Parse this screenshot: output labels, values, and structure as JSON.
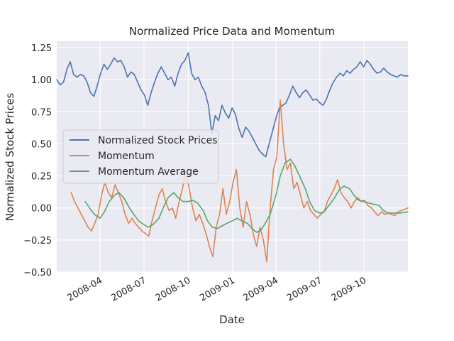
{
  "chart_data": {
    "type": "line",
    "title": "Normalized Price Data and Momentum",
    "xlabel": "Date",
    "ylabel": "Normalized Stock Prices",
    "xlim": [
      "2008-01-02",
      "2009-12-31"
    ],
    "ylim": [
      -0.5,
      1.3
    ],
    "x_ticks": [
      "2008-04",
      "2008-07",
      "2008-10",
      "2009-01",
      "2009-04",
      "2009-07",
      "2009-10"
    ],
    "y_ticks": [
      "1.25",
      "1.00",
      "0.75",
      "0.50",
      "0.25",
      "0.00",
      "−0.25",
      "−0.50"
    ],
    "grid": true,
    "legend_position": "center-left",
    "series": [
      {
        "name": "Normalized Stock Prices",
        "color": "#4c72b0",
        "points": [
          [
            "2008-01-02",
            1.0
          ],
          [
            "2008-01-09",
            0.96
          ],
          [
            "2008-01-16",
            0.98
          ],
          [
            "2008-01-23",
            1.08
          ],
          [
            "2008-01-30",
            1.14
          ],
          [
            "2008-02-06",
            1.04
          ],
          [
            "2008-02-13",
            1.02
          ],
          [
            "2008-02-20",
            1.04
          ],
          [
            "2008-02-27",
            1.03
          ],
          [
            "2008-03-05",
            0.98
          ],
          [
            "2008-03-12",
            0.9
          ],
          [
            "2008-03-19",
            0.87
          ],
          [
            "2008-03-26",
            0.95
          ],
          [
            "2008-04-02",
            1.05
          ],
          [
            "2008-04-09",
            1.12
          ],
          [
            "2008-04-16",
            1.08
          ],
          [
            "2008-04-23",
            1.12
          ],
          [
            "2008-04-30",
            1.17
          ],
          [
            "2008-05-07",
            1.14
          ],
          [
            "2008-05-14",
            1.15
          ],
          [
            "2008-05-21",
            1.1
          ],
          [
            "2008-05-28",
            1.02
          ],
          [
            "2008-06-04",
            1.06
          ],
          [
            "2008-06-11",
            1.04
          ],
          [
            "2008-06-18",
            0.98
          ],
          [
            "2008-06-25",
            0.92
          ],
          [
            "2008-07-02",
            0.88
          ],
          [
            "2008-07-09",
            0.8
          ],
          [
            "2008-07-16",
            0.9
          ],
          [
            "2008-07-23",
            0.98
          ],
          [
            "2008-07-30",
            1.05
          ],
          [
            "2008-08-06",
            1.1
          ],
          [
            "2008-08-13",
            1.05
          ],
          [
            "2008-08-20",
            1.0
          ],
          [
            "2008-08-27",
            1.02
          ],
          [
            "2008-09-03",
            0.95
          ],
          [
            "2008-09-10",
            1.05
          ],
          [
            "2008-09-17",
            1.12
          ],
          [
            "2008-09-24",
            1.15
          ],
          [
            "2008-10-01",
            1.21
          ],
          [
            "2008-10-08",
            1.05
          ],
          [
            "2008-10-15",
            1.0
          ],
          [
            "2008-10-22",
            1.02
          ],
          [
            "2008-10-29",
            0.95
          ],
          [
            "2008-11-05",
            0.9
          ],
          [
            "2008-11-12",
            0.8
          ],
          [
            "2008-11-19",
            0.58
          ],
          [
            "2008-11-26",
            0.72
          ],
          [
            "2008-12-03",
            0.68
          ],
          [
            "2008-12-10",
            0.8
          ],
          [
            "2008-12-17",
            0.74
          ],
          [
            "2008-12-24",
            0.7
          ],
          [
            "2008-12-31",
            0.78
          ],
          [
            "2009-01-07",
            0.73
          ],
          [
            "2009-01-14",
            0.62
          ],
          [
            "2009-01-21",
            0.55
          ],
          [
            "2009-01-28",
            0.63
          ],
          [
            "2009-02-04",
            0.6
          ],
          [
            "2009-02-11",
            0.55
          ],
          [
            "2009-02-18",
            0.5
          ],
          [
            "2009-02-25",
            0.45
          ],
          [
            "2009-03-04",
            0.42
          ],
          [
            "2009-03-11",
            0.4
          ],
          [
            "2009-03-18",
            0.5
          ],
          [
            "2009-03-25",
            0.6
          ],
          [
            "2009-04-01",
            0.7
          ],
          [
            "2009-04-08",
            0.78
          ],
          [
            "2009-04-15",
            0.8
          ],
          [
            "2009-04-22",
            0.82
          ],
          [
            "2009-04-29",
            0.88
          ],
          [
            "2009-05-06",
            0.95
          ],
          [
            "2009-05-13",
            0.9
          ],
          [
            "2009-05-20",
            0.86
          ],
          [
            "2009-05-27",
            0.9
          ],
          [
            "2009-06-03",
            0.92
          ],
          [
            "2009-06-10",
            0.88
          ],
          [
            "2009-06-17",
            0.84
          ],
          [
            "2009-06-24",
            0.85
          ],
          [
            "2009-07-01",
            0.82
          ],
          [
            "2009-07-08",
            0.8
          ],
          [
            "2009-07-15",
            0.85
          ],
          [
            "2009-07-22",
            0.92
          ],
          [
            "2009-07-29",
            0.98
          ],
          [
            "2009-08-05",
            1.02
          ],
          [
            "2009-08-12",
            1.05
          ],
          [
            "2009-08-19",
            1.03
          ],
          [
            "2009-08-26",
            1.07
          ],
          [
            "2009-09-02",
            1.05
          ],
          [
            "2009-09-09",
            1.08
          ],
          [
            "2009-09-16",
            1.1
          ],
          [
            "2009-09-23",
            1.14
          ],
          [
            "2009-09-30",
            1.1
          ],
          [
            "2009-10-07",
            1.15
          ],
          [
            "2009-10-14",
            1.12
          ],
          [
            "2009-10-21",
            1.08
          ],
          [
            "2009-10-28",
            1.05
          ],
          [
            "2009-11-04",
            1.06
          ],
          [
            "2009-11-11",
            1.09
          ],
          [
            "2009-11-18",
            1.06
          ],
          [
            "2009-11-25",
            1.04
          ],
          [
            "2009-12-02",
            1.03
          ],
          [
            "2009-12-09",
            1.02
          ],
          [
            "2009-12-16",
            1.04
          ],
          [
            "2009-12-23",
            1.03
          ],
          [
            "2009-12-31",
            1.03
          ]
        ]
      },
      {
        "name": "Momentum",
        "color": "#dd8452",
        "points": [
          [
            "2008-02-01",
            0.12
          ],
          [
            "2008-02-08",
            0.05
          ],
          [
            "2008-02-15",
            0.0
          ],
          [
            "2008-02-22",
            -0.05
          ],
          [
            "2008-02-29",
            -0.1
          ],
          [
            "2008-03-07",
            -0.15
          ],
          [
            "2008-03-14",
            -0.18
          ],
          [
            "2008-03-21",
            -0.12
          ],
          [
            "2008-03-28",
            -0.05
          ],
          [
            "2008-04-04",
            0.1
          ],
          [
            "2008-04-11",
            0.2
          ],
          [
            "2008-04-18",
            0.12
          ],
          [
            "2008-04-25",
            0.08
          ],
          [
            "2008-05-02",
            0.18
          ],
          [
            "2008-05-09",
            0.12
          ],
          [
            "2008-05-16",
            0.05
          ],
          [
            "2008-05-23",
            -0.05
          ],
          [
            "2008-05-30",
            -0.12
          ],
          [
            "2008-06-06",
            -0.08
          ],
          [
            "2008-06-13",
            -0.12
          ],
          [
            "2008-06-20",
            -0.15
          ],
          [
            "2008-06-27",
            -0.18
          ],
          [
            "2008-07-04",
            -0.2
          ],
          [
            "2008-07-11",
            -0.22
          ],
          [
            "2008-07-18",
            -0.1
          ],
          [
            "2008-07-25",
            0.0
          ],
          [
            "2008-08-01",
            0.1
          ],
          [
            "2008-08-08",
            0.15
          ],
          [
            "2008-08-15",
            0.05
          ],
          [
            "2008-08-22",
            -0.02
          ],
          [
            "2008-08-29",
            0.0
          ],
          [
            "2008-09-05",
            -0.08
          ],
          [
            "2008-09-12",
            0.05
          ],
          [
            "2008-09-19",
            0.15
          ],
          [
            "2008-09-26",
            0.28
          ],
          [
            "2008-10-03",
            0.15
          ],
          [
            "2008-10-10",
            0.0
          ],
          [
            "2008-10-17",
            -0.1
          ],
          [
            "2008-10-24",
            -0.05
          ],
          [
            "2008-10-31",
            -0.12
          ],
          [
            "2008-11-07",
            -0.2
          ],
          [
            "2008-11-14",
            -0.3
          ],
          [
            "2008-11-21",
            -0.38
          ],
          [
            "2008-11-28",
            -0.15
          ],
          [
            "2008-12-05",
            -0.05
          ],
          [
            "2008-12-12",
            0.15
          ],
          [
            "2008-12-19",
            -0.05
          ],
          [
            "2008-12-26",
            0.05
          ],
          [
            "2009-01-02",
            0.2
          ],
          [
            "2009-01-09",
            0.3
          ],
          [
            "2009-01-16",
            0.0
          ],
          [
            "2009-01-23",
            -0.15
          ],
          [
            "2009-01-30",
            0.05
          ],
          [
            "2009-02-06",
            -0.05
          ],
          [
            "2009-02-13",
            -0.2
          ],
          [
            "2009-02-20",
            -0.3
          ],
          [
            "2009-02-27",
            -0.15
          ],
          [
            "2009-03-06",
            -0.25
          ],
          [
            "2009-03-13",
            -0.42
          ],
          [
            "2009-03-20",
            0.0
          ],
          [
            "2009-03-27",
            0.3
          ],
          [
            "2009-04-03",
            0.4
          ],
          [
            "2009-04-10",
            0.84
          ],
          [
            "2009-04-17",
            0.5
          ],
          [
            "2009-04-24",
            0.3
          ],
          [
            "2009-05-01",
            0.35
          ],
          [
            "2009-05-08",
            0.15
          ],
          [
            "2009-05-15",
            0.2
          ],
          [
            "2009-05-22",
            0.1
          ],
          [
            "2009-05-29",
            0.0
          ],
          [
            "2009-06-05",
            0.05
          ],
          [
            "2009-06-12",
            -0.02
          ],
          [
            "2009-06-19",
            -0.05
          ],
          [
            "2009-06-26",
            -0.08
          ],
          [
            "2009-07-03",
            -0.05
          ],
          [
            "2009-07-10",
            -0.03
          ],
          [
            "2009-07-17",
            0.05
          ],
          [
            "2009-07-24",
            0.1
          ],
          [
            "2009-07-31",
            0.15
          ],
          [
            "2009-08-07",
            0.22
          ],
          [
            "2009-08-14",
            0.12
          ],
          [
            "2009-08-21",
            0.08
          ],
          [
            "2009-08-28",
            0.05
          ],
          [
            "2009-09-04",
            0.0
          ],
          [
            "2009-09-11",
            0.05
          ],
          [
            "2009-09-18",
            0.08
          ],
          [
            "2009-09-25",
            0.05
          ],
          [
            "2009-10-02",
            0.06
          ],
          [
            "2009-10-09",
            0.02
          ],
          [
            "2009-10-16",
            0.0
          ],
          [
            "2009-10-23",
            -0.03
          ],
          [
            "2009-10-30",
            -0.06
          ],
          [
            "2009-11-06",
            -0.03
          ],
          [
            "2009-11-13",
            -0.05
          ],
          [
            "2009-11-20",
            -0.04
          ],
          [
            "2009-11-27",
            -0.05
          ],
          [
            "2009-12-04",
            -0.06
          ],
          [
            "2009-12-11",
            -0.03
          ],
          [
            "2009-12-18",
            -0.02
          ],
          [
            "2009-12-31",
            0.0
          ]
        ]
      },
      {
        "name": "Momentum Average",
        "color": "#55a868",
        "points": [
          [
            "2008-03-01",
            0.05
          ],
          [
            "2008-03-10",
            0.0
          ],
          [
            "2008-03-20",
            -0.05
          ],
          [
            "2008-04-01",
            -0.08
          ],
          [
            "2008-04-10",
            -0.03
          ],
          [
            "2008-04-20",
            0.05
          ],
          [
            "2008-05-01",
            0.1
          ],
          [
            "2008-05-10",
            0.12
          ],
          [
            "2008-05-20",
            0.08
          ],
          [
            "2008-06-01",
            0.0
          ],
          [
            "2008-06-10",
            -0.05
          ],
          [
            "2008-06-20",
            -0.1
          ],
          [
            "2008-07-01",
            -0.13
          ],
          [
            "2008-07-10",
            -0.15
          ],
          [
            "2008-07-20",
            -0.13
          ],
          [
            "2008-08-01",
            -0.08
          ],
          [
            "2008-08-10",
            0.0
          ],
          [
            "2008-08-20",
            0.08
          ],
          [
            "2008-09-01",
            0.12
          ],
          [
            "2008-09-10",
            0.08
          ],
          [
            "2008-09-20",
            0.05
          ],
          [
            "2008-10-01",
            0.05
          ],
          [
            "2008-10-10",
            0.06
          ],
          [
            "2008-10-20",
            0.04
          ],
          [
            "2008-11-01",
            -0.02
          ],
          [
            "2008-11-10",
            -0.1
          ],
          [
            "2008-11-20",
            -0.15
          ],
          [
            "2008-12-01",
            -0.16
          ],
          [
            "2008-12-10",
            -0.14
          ],
          [
            "2008-12-20",
            -0.12
          ],
          [
            "2009-01-01",
            -0.1
          ],
          [
            "2009-01-10",
            -0.08
          ],
          [
            "2009-01-20",
            -0.1
          ],
          [
            "2009-02-01",
            -0.12
          ],
          [
            "2009-02-10",
            -0.16
          ],
          [
            "2009-02-20",
            -0.19
          ],
          [
            "2009-03-01",
            -0.17
          ],
          [
            "2009-03-10",
            -0.12
          ],
          [
            "2009-03-20",
            -0.05
          ],
          [
            "2009-04-01",
            0.1
          ],
          [
            "2009-04-10",
            0.25
          ],
          [
            "2009-04-20",
            0.35
          ],
          [
            "2009-05-01",
            0.38
          ],
          [
            "2009-05-10",
            0.33
          ],
          [
            "2009-05-20",
            0.25
          ],
          [
            "2009-06-01",
            0.15
          ],
          [
            "2009-06-10",
            0.05
          ],
          [
            "2009-06-20",
            -0.02
          ],
          [
            "2009-07-01",
            -0.04
          ],
          [
            "2009-07-10",
            -0.03
          ],
          [
            "2009-07-20",
            0.02
          ],
          [
            "2009-08-01",
            0.08
          ],
          [
            "2009-08-10",
            0.14
          ],
          [
            "2009-08-20",
            0.17
          ],
          [
            "2009-09-01",
            0.15
          ],
          [
            "2009-09-10",
            0.1
          ],
          [
            "2009-09-20",
            0.06
          ],
          [
            "2009-10-01",
            0.05
          ],
          [
            "2009-10-10",
            0.04
          ],
          [
            "2009-10-20",
            0.03
          ],
          [
            "2009-11-01",
            0.02
          ],
          [
            "2009-11-10",
            -0.02
          ],
          [
            "2009-11-20",
            -0.04
          ],
          [
            "2009-12-01",
            -0.04
          ],
          [
            "2009-12-15",
            -0.04
          ],
          [
            "2009-12-31",
            -0.03
          ]
        ]
      }
    ]
  }
}
